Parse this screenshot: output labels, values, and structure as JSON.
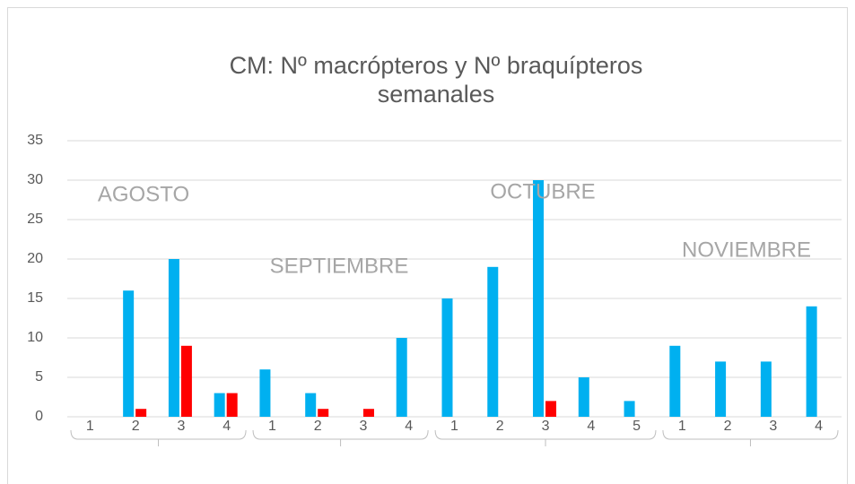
{
  "chart_data": {
    "type": "bar",
    "title": [
      "CM: Nº macrópteros y Nº braquípteros",
      "semanales"
    ],
    "groups": [
      {
        "name": "AGOSTO",
        "categories": [
          "1",
          "2",
          "3",
          "4"
        ]
      },
      {
        "name": "SEPTIEMBRE",
        "categories": [
          "1",
          "2",
          "3",
          "4"
        ]
      },
      {
        "name": "OCTUBRE",
        "categories": [
          "1",
          "2",
          "3",
          "4",
          "5"
        ]
      },
      {
        "name": "NOVIEMBRE",
        "categories": [
          "1",
          "2",
          "3",
          "4"
        ]
      }
    ],
    "series": [
      {
        "color": "#00b0f0",
        "values": [
          0,
          16,
          20,
          3,
          6,
          3,
          0,
          10,
          15,
          19,
          30,
          5,
          2,
          9,
          7,
          7,
          14
        ]
      },
      {
        "color": "#ff0000",
        "values": [
          0,
          1,
          9,
          3,
          0,
          1,
          1,
          0,
          0,
          0,
          2,
          0,
          0,
          0,
          0,
          0,
          0
        ]
      }
    ],
    "ylim": [
      0,
      35
    ],
    "yticks": [
      0,
      5,
      10,
      15,
      20,
      25,
      30,
      35
    ],
    "grid": true
  }
}
